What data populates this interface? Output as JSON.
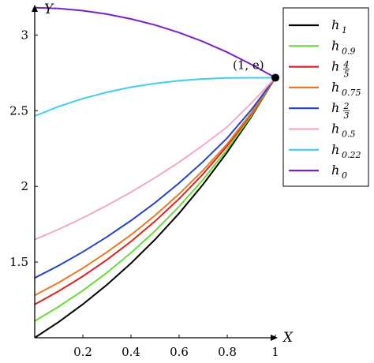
{
  "chart_data": {
    "type": "line",
    "xlabel": "X",
    "ylabel": "Y",
    "xlim": [
      0,
      1
    ],
    "ylim": [
      1,
      3.2
    ],
    "xticks": [
      0.2,
      0.4,
      0.6,
      0.8,
      1
    ],
    "xtick_labels": [
      "0.2",
      "0.4",
      "0.6",
      "0.8",
      "1"
    ],
    "yticks": [
      1.5,
      2,
      2.5,
      3
    ],
    "ytick_labels": [
      "1.5",
      "2",
      "2.5",
      "3"
    ],
    "grid": false,
    "legend_position": "top-right",
    "annotation": {
      "label": "(1, e)",
      "x": 1,
      "y": 2.718
    },
    "x": [
      0,
      0.1,
      0.2,
      0.3,
      0.4,
      0.5,
      0.6,
      0.7,
      0.8,
      0.9,
      1
    ],
    "series": [
      {
        "name": "h",
        "subscript": "1",
        "color": "#000000",
        "values": [
          1.0,
          1.105,
          1.221,
          1.35,
          1.492,
          1.649,
          1.822,
          2.014,
          2.226,
          2.46,
          2.718
        ]
      },
      {
        "name": "h",
        "subscript": "0.9",
        "color": "#66dd33",
        "values": [
          1.11,
          1.206,
          1.312,
          1.43,
          1.561,
          1.706,
          1.867,
          2.046,
          2.245,
          2.467,
          2.718
        ]
      },
      {
        "name": "h",
        "subscript": "4/5",
        "color": "#dd2222",
        "values": [
          1.22,
          1.308,
          1.406,
          1.515,
          1.636,
          1.77,
          1.918,
          2.083,
          2.267,
          2.479,
          2.718
        ]
      },
      {
        "name": "h",
        "subscript": "0.75",
        "color": "#ee7722",
        "values": [
          1.28,
          1.365,
          1.46,
          1.565,
          1.68,
          1.808,
          1.95,
          2.107,
          2.281,
          2.486,
          2.718
        ]
      },
      {
        "name": "h",
        "subscript": "2/3",
        "color": "#2244cc",
        "values": [
          1.395,
          1.477,
          1.567,
          1.666,
          1.774,
          1.892,
          2.022,
          2.164,
          2.32,
          2.506,
          2.718
        ]
      },
      {
        "name": "h",
        "subscript": "0.5",
        "color": "#f4a6cc",
        "values": [
          1.648,
          1.717,
          1.792,
          1.874,
          1.962,
          2.057,
          2.16,
          2.272,
          2.393,
          2.55,
          2.718
        ]
      },
      {
        "name": "h",
        "subscript": "0.22",
        "color": "#44ccee",
        "values": [
          2.465,
          2.528,
          2.58,
          2.622,
          2.655,
          2.68,
          2.698,
          2.71,
          2.716,
          2.718,
          2.718
        ]
      },
      {
        "name": "h",
        "subscript": "0",
        "color": "#7722cc",
        "values": [
          3.18,
          3.175,
          3.161,
          3.138,
          3.106,
          3.066,
          3.016,
          2.956,
          2.886,
          2.806,
          2.718
        ]
      }
    ]
  }
}
